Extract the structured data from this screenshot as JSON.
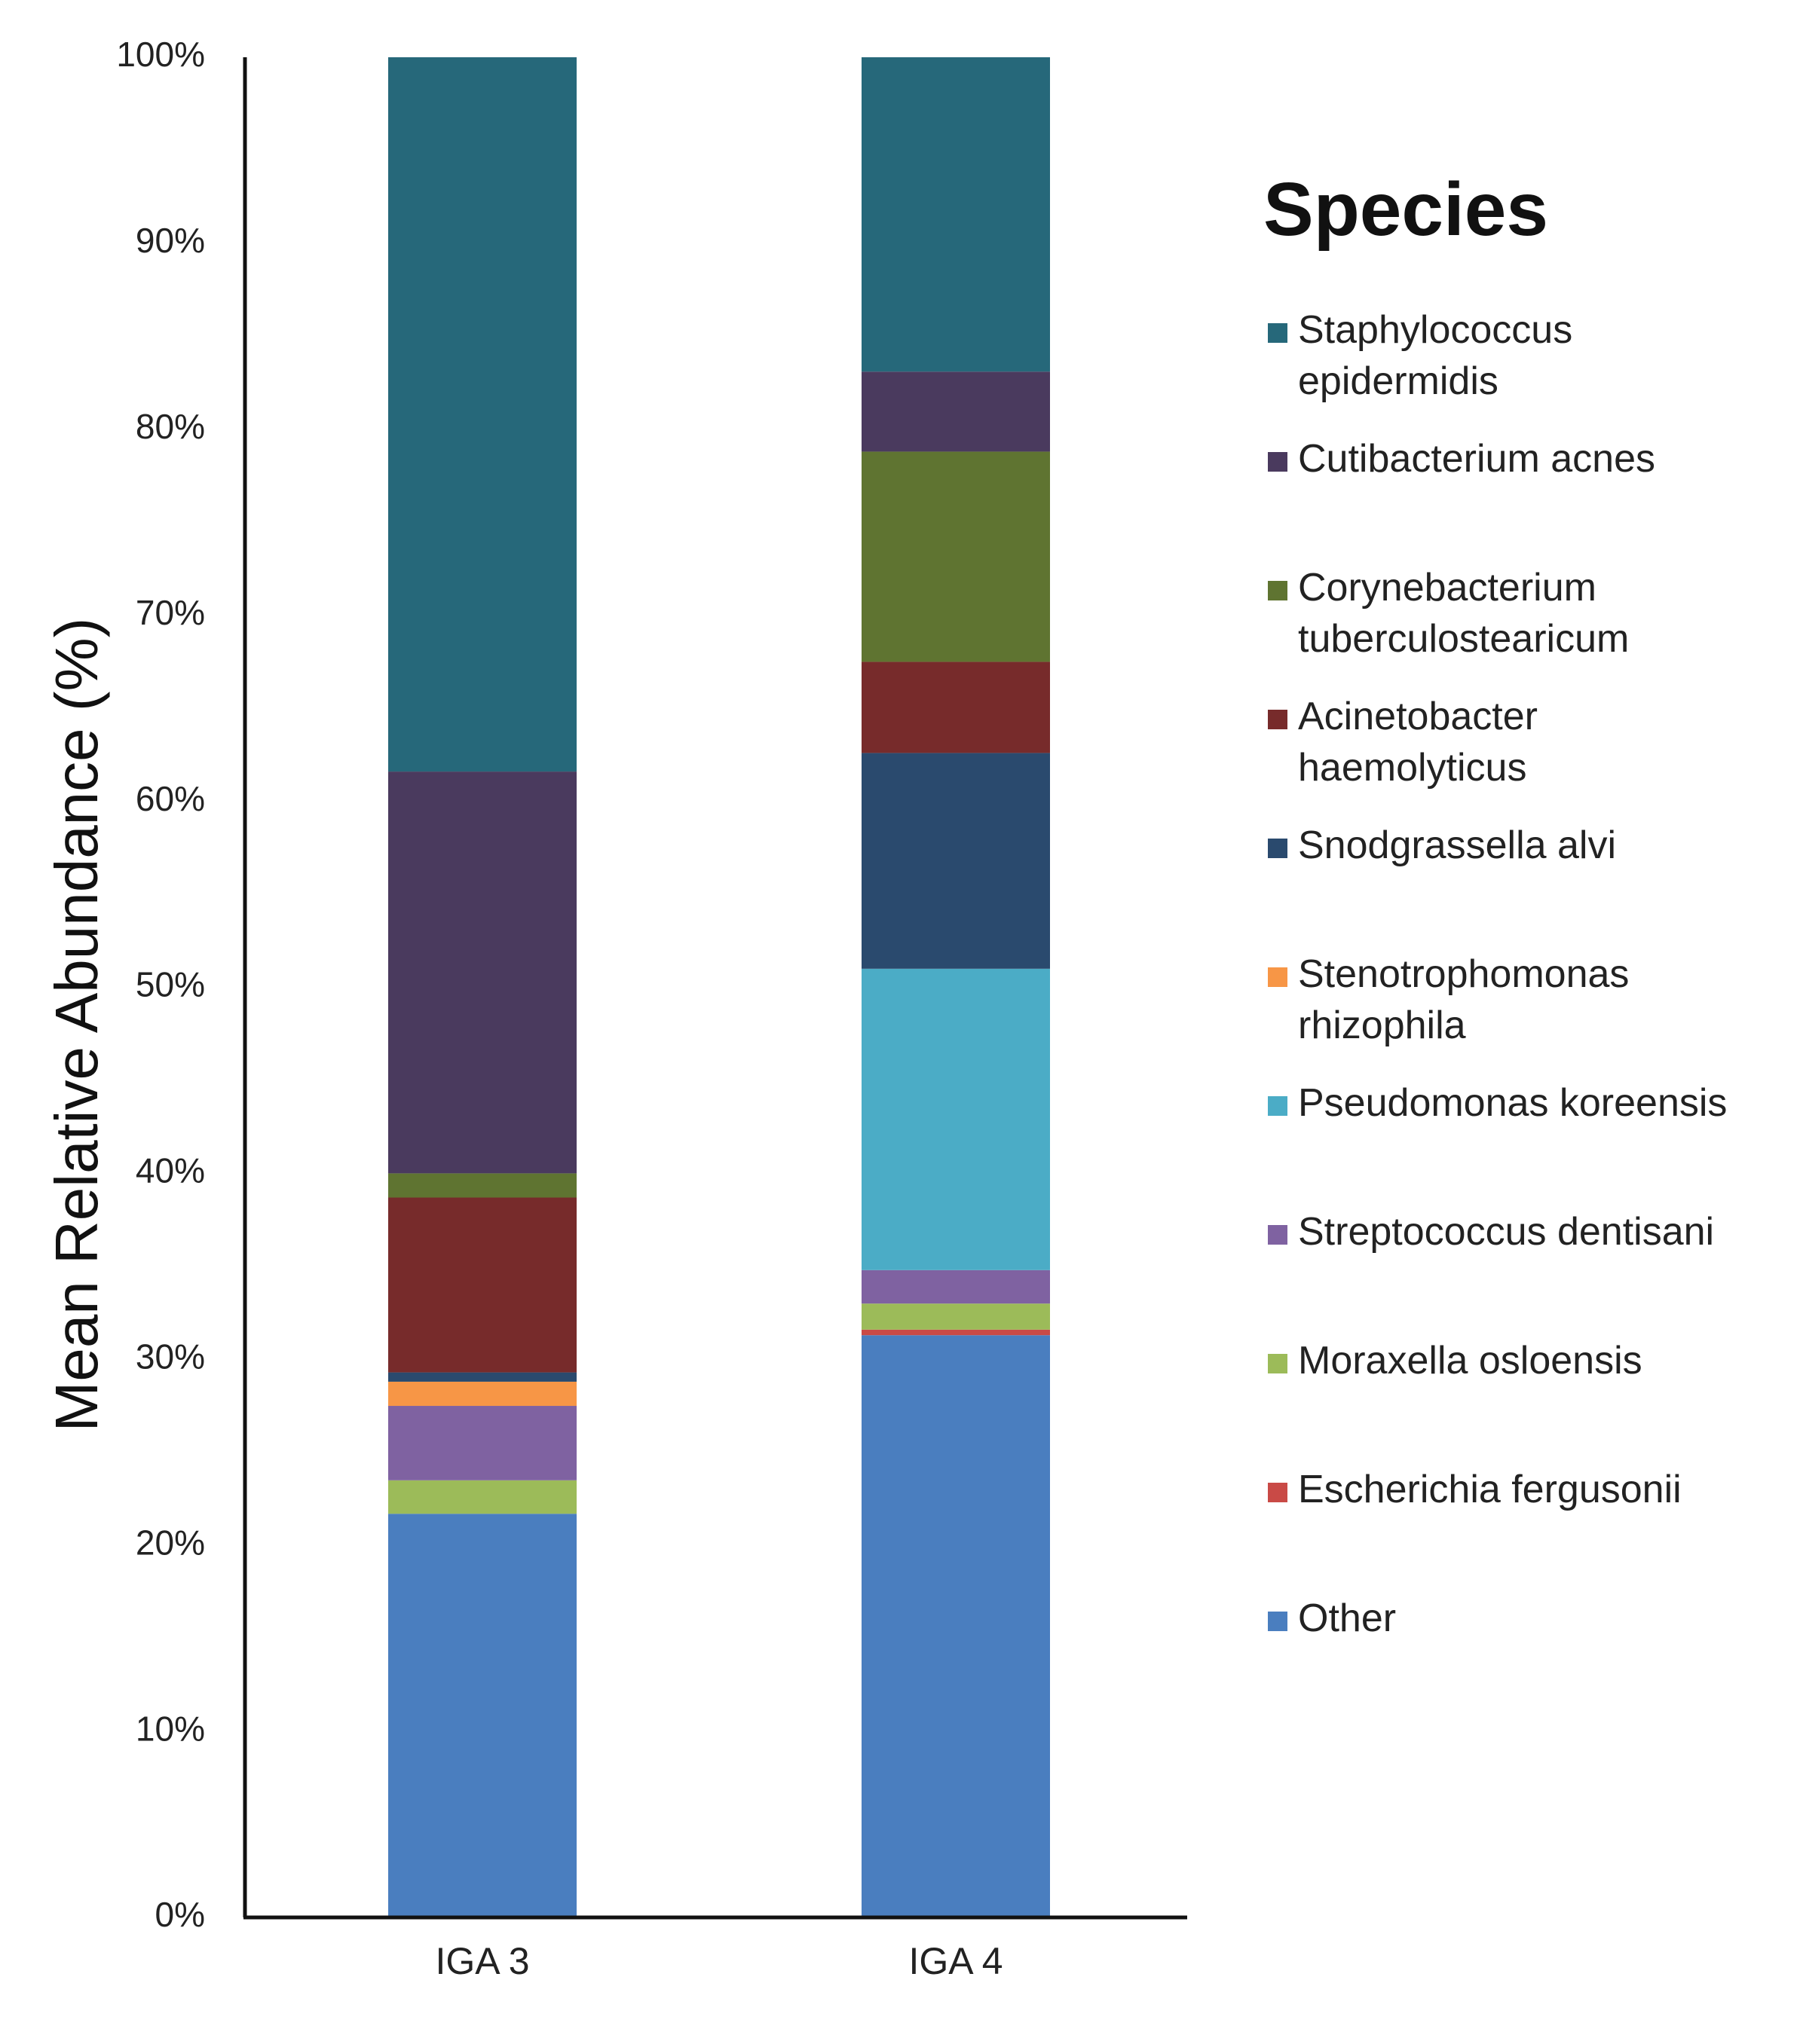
{
  "chart_data": {
    "type": "bar",
    "stacked": true,
    "normalized": true,
    "title": "",
    "xlabel": "",
    "ylabel": "Mean Relative Abundance (%)",
    "ylim": [
      0,
      100
    ],
    "yticks": [
      0,
      10,
      20,
      30,
      40,
      50,
      60,
      70,
      80,
      90,
      100
    ],
    "ytick_labels": [
      "0%",
      "10%",
      "20%",
      "30%",
      "40%",
      "50%",
      "60%",
      "70%",
      "80%",
      "90%",
      "100%"
    ],
    "categories": [
      "IGA 3",
      "IGA 4"
    ],
    "legend_title": "Species",
    "legend_position": "right",
    "series": [
      {
        "name": "Other",
        "color": "#4a7ebf",
        "values": [
          21.7,
          31.3
        ]
      },
      {
        "name": "Escherichia fergusonii",
        "color": "#c94a46",
        "values": [
          0.0,
          0.3
        ]
      },
      {
        "name": "Moraxella osloensis",
        "color": "#9cbb59",
        "values": [
          1.8,
          1.4
        ]
      },
      {
        "name": "Streptococcus dentisani",
        "color": "#7f62a1",
        "values": [
          4.0,
          1.8
        ]
      },
      {
        "name": "Pseudomonas koreensis",
        "color": "#4bacc6",
        "values": [
          0.0,
          16.2
        ]
      },
      {
        "name": "Stenotrophomonas rhizophila",
        "color": "#f79646",
        "values": [
          1.3,
          0.0
        ]
      },
      {
        "name": "Snodgrassella alvi",
        "color": "#2a4a6e",
        "values": [
          0.5,
          11.6
        ]
      },
      {
        "name": "Acinetobacter haemolyticus",
        "color": "#772b2b",
        "values": [
          9.4,
          4.9
        ]
      },
      {
        "name": "Corynebacterium tuberculostearicum",
        "color": "#5f7431",
        "values": [
          1.3,
          11.3
        ]
      },
      {
        "name": "Cutibacterium acnes",
        "color": "#4a3a5e",
        "values": [
          21.6,
          4.3
        ]
      },
      {
        "name": "Staphylococcus epidermidis",
        "color": "#26687a",
        "values": [
          38.4,
          16.9
        ]
      }
    ],
    "legend_entries": [
      {
        "lines": [
          "Staphylococcus",
          "epidermidis"
        ],
        "color": "#26687a"
      },
      {
        "lines": [
          "Cutibacterium acnes"
        ],
        "color": "#4a3a5e"
      },
      {
        "lines": [
          "Corynebacterium",
          "tuberculostearicum"
        ],
        "color": "#5f7431"
      },
      {
        "lines": [
          "Acinetobacter",
          "haemolyticus"
        ],
        "color": "#772b2b"
      },
      {
        "lines": [
          "Snodgrassella alvi"
        ],
        "color": "#2a4a6e"
      },
      {
        "lines": [
          "Stenotrophomonas",
          "rhizophila"
        ],
        "color": "#f79646"
      },
      {
        "lines": [
          "Pseudomonas koreensis"
        ],
        "color": "#4bacc6"
      },
      {
        "lines": [
          "Streptococcus dentisani"
        ],
        "color": "#7f62a1"
      },
      {
        "lines": [
          "Moraxella osloensis"
        ],
        "color": "#9cbb59"
      },
      {
        "lines": [
          "Escherichia fergusonii"
        ],
        "color": "#c94a46"
      },
      {
        "lines": [
          "Other"
        ],
        "color": "#4a7ebf"
      }
    ]
  }
}
